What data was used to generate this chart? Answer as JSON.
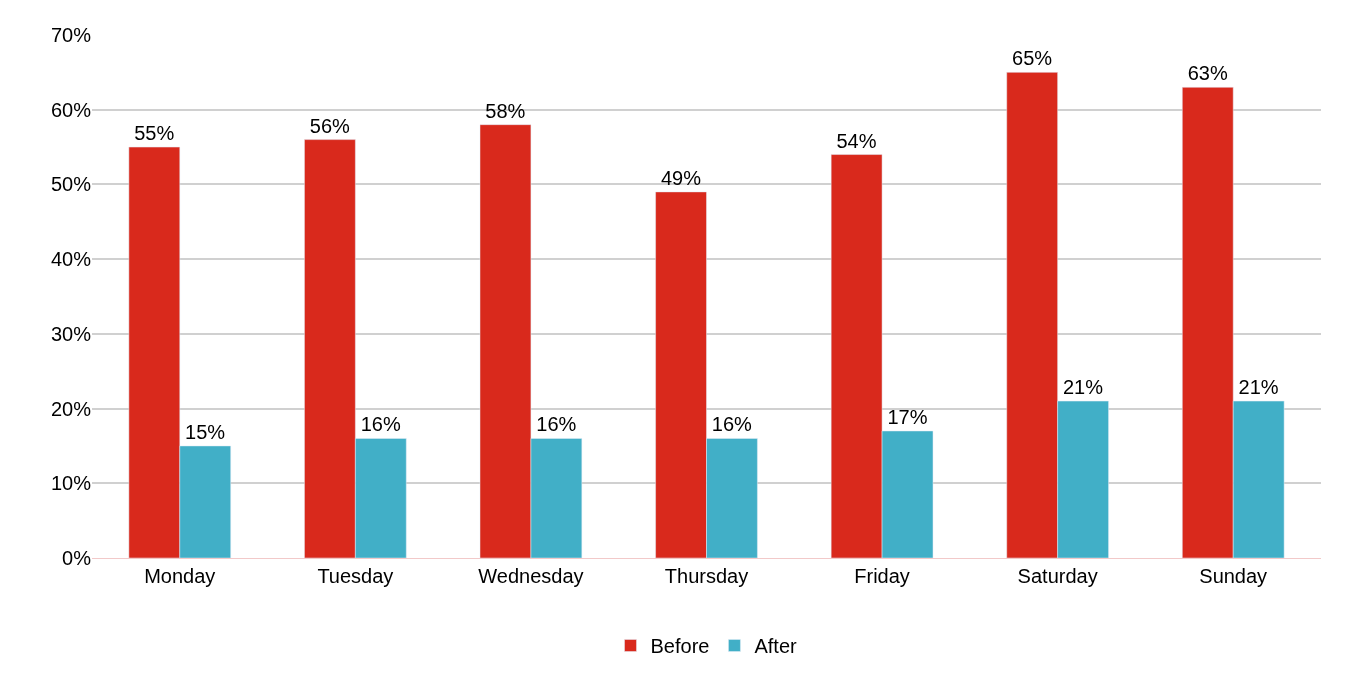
{
  "chart_data": {
    "type": "bar",
    "categories": [
      "Monday",
      "Tuesday",
      "Wednesday",
      "Thursday",
      "Friday",
      "Saturday",
      "Sunday"
    ],
    "series": [
      {
        "name": "Before",
        "color": "#d9291c",
        "values": [
          55,
          56,
          58,
          49,
          54,
          65,
          63
        ],
        "value_labels": [
          "55%",
          "56%",
          "58%",
          "49%",
          "54%",
          "65%",
          "63%"
        ]
      },
      {
        "name": "After",
        "color": "#41afc7",
        "values": [
          15,
          16,
          16,
          16,
          17,
          21,
          21
        ],
        "value_labels": [
          "15%",
          "16%",
          "16%",
          "16%",
          "17%",
          "21%",
          "21%"
        ]
      }
    ],
    "ylim": [
      0,
      70
    ],
    "yticks": [
      {
        "value": 0,
        "label": "0%"
      },
      {
        "value": 10,
        "label": "10%"
      },
      {
        "value": 20,
        "label": "20%"
      },
      {
        "value": 30,
        "label": "30%"
      },
      {
        "value": 40,
        "label": "40%"
      },
      {
        "value": 50,
        "label": "50%"
      },
      {
        "value": 60,
        "label": "60%"
      },
      {
        "value": 70,
        "label": "70%"
      }
    ],
    "grid": "y",
    "legend": "bottom"
  }
}
